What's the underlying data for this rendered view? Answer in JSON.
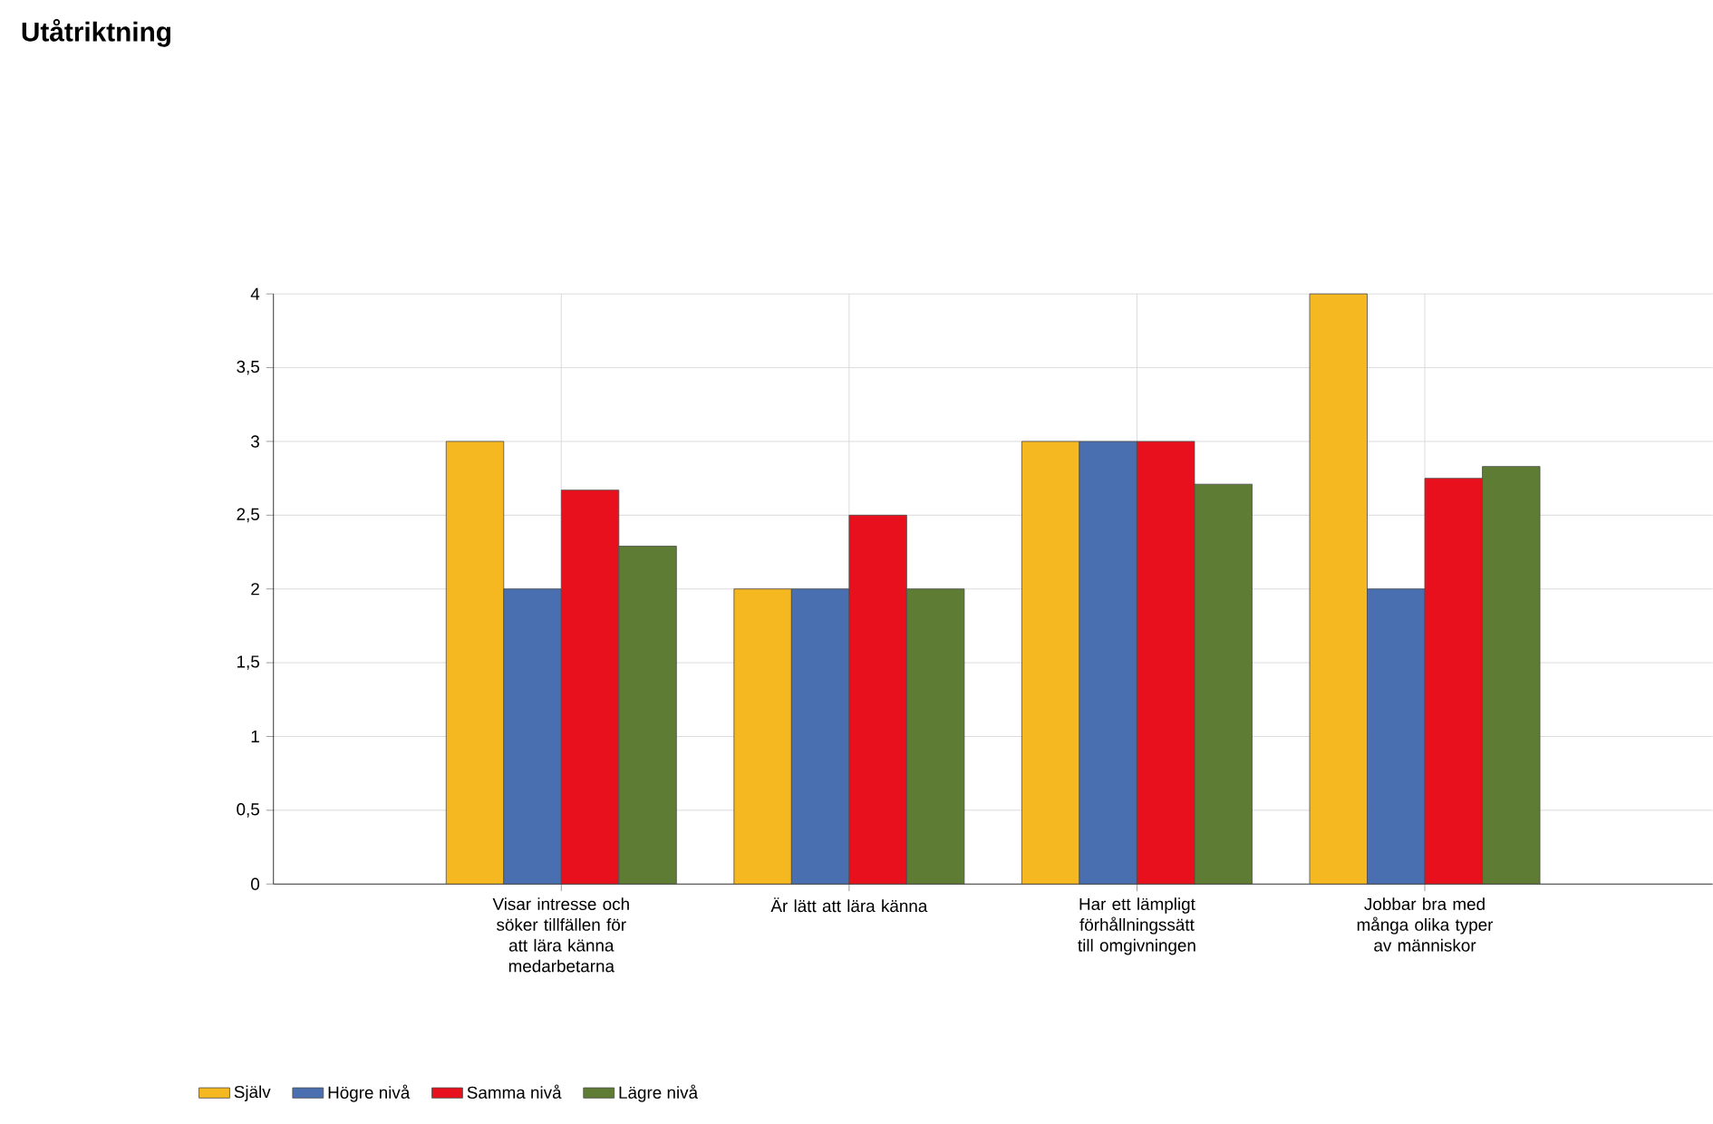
{
  "chart_data": {
    "type": "bar",
    "title": "Utåtriktning",
    "categories": [
      "Visar intresse och söker tillfällen för att lära känna medarbetarna",
      "Är lätt att lära känna",
      "Har ett lämpligt förhållningssätt till omgivningen",
      "Jobbar bra med många olika typer av människor"
    ],
    "series": [
      {
        "name": "Själv",
        "color": "#f5b820",
        "values": [
          3,
          2,
          3,
          4
        ]
      },
      {
        "name": "Högre nivå",
        "color": "#4a6fb0",
        "values": [
          2,
          2,
          3,
          2
        ]
      },
      {
        "name": "Samma nivå",
        "color": "#e8101c",
        "values": [
          2.67,
          2.5,
          3,
          2.75
        ]
      },
      {
        "name": "Lägre nivå",
        "color": "#5e7c34",
        "values": [
          2.29,
          2,
          2.71,
          2.83
        ]
      }
    ],
    "ylim": [
      0,
      4
    ],
    "yticks": [
      0,
      {
        "value": 0.5,
        "label": "0,5"
      },
      1,
      {
        "value": 1.5,
        "label": "1,5"
      },
      2,
      {
        "value": 2.5,
        "label": "2,5"
      },
      3,
      {
        "value": 3.5,
        "label": "3,5"
      },
      4
    ],
    "grid": true,
    "legend": "bottom left"
  }
}
